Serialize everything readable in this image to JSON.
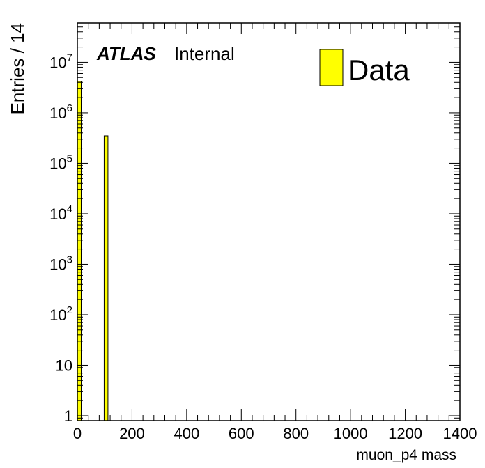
{
  "chart_data": {
    "type": "bar",
    "xlabel": "muon_p4 mass",
    "ylabel": "Entries / 14",
    "xlim": [
      0,
      1400
    ],
    "ylim": [
      0.8,
      60000000
    ],
    "yscale": "log",
    "x_ticks": [
      0,
      200,
      400,
      600,
      800,
      1000,
      1200,
      1400
    ],
    "y_ticks": [
      {
        "value": 1,
        "base": "1",
        "exp": ""
      },
      {
        "value": 10,
        "base": "10",
        "exp": ""
      },
      {
        "value": 100,
        "base": "10",
        "exp": "2"
      },
      {
        "value": 1000,
        "base": "10",
        "exp": "3"
      },
      {
        "value": 10000,
        "base": "10",
        "exp": "4"
      },
      {
        "value": 100000,
        "base": "10",
        "exp": "5"
      },
      {
        "value": 1000000,
        "base": "10",
        "exp": "6"
      },
      {
        "value": 10000000,
        "base": "10",
        "exp": "7"
      }
    ],
    "bin_width": 14,
    "series": [
      {
        "name": "Data",
        "color": "#ffff00",
        "bins": [
          {
            "x_low": 0,
            "x_high": 14,
            "value": 4200000
          },
          {
            "x_low": 98,
            "x_high": 112,
            "value": 350000
          }
        ]
      }
    ],
    "legend_position": "top-right",
    "grid": false,
    "atlas_label": "ATLAS",
    "atlas_status": "Internal"
  }
}
